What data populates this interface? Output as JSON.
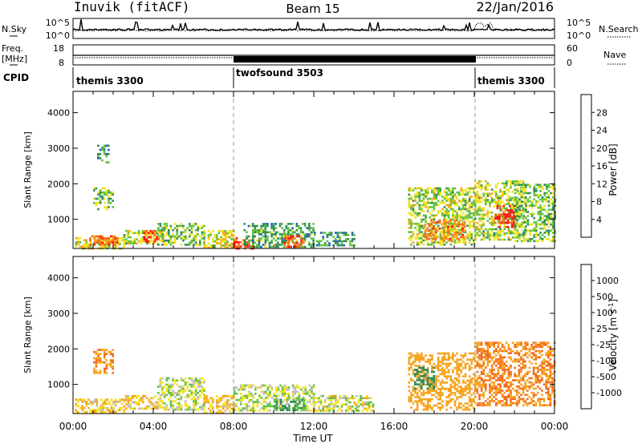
{
  "header": {
    "station": "Inuvik (fitACF)",
    "beam": "Beam 15",
    "date": "22/Jan/2016"
  },
  "noise_panel": {
    "left_label": "N.Sky",
    "left_ticks": [
      "10^5",
      "10^0"
    ],
    "right_label": "N.Search",
    "right_ticks": [
      "10^5",
      "10^0"
    ]
  },
  "freq_panel": {
    "left_label_1": "Freq.",
    "left_label_2": "[MHz]",
    "left_ticks": [
      "18",
      "8"
    ],
    "right_label": "Nave",
    "right_ticks": [
      "60",
      "0"
    ]
  },
  "cpid": {
    "label": "CPID",
    "segments": [
      {
        "name": "themis 3300",
        "start": 0,
        "end": 8
      },
      {
        "name": "twofsound 3503",
        "start": 8,
        "end": 20
      },
      {
        "name": "themis 3300",
        "start": 20,
        "end": 24
      }
    ]
  },
  "colorbars": {
    "power": {
      "title": "Power [dB]",
      "ticks": [
        "4",
        "8",
        "12",
        "16",
        "20",
        "24",
        "28"
      ],
      "colors": [
        "#1010ff",
        "#1e5ac8",
        "#2e8b57",
        "#5fc23a",
        "#f2e21a",
        "#f7a21a",
        "#f26a1a",
        "#ff1010"
      ]
    },
    "velocity": {
      "title": "Velocity [m s",
      "title_sup": "-1",
      "title_end": "]",
      "ticks": [
        "-1000",
        "-500",
        "-100",
        "-25",
        "25",
        "100",
        "500",
        "1000"
      ],
      "colors": [
        "#ff1010",
        "#f26a1a",
        "#f7a21a",
        "#f2e21a",
        "#bdbdbd",
        "#5fc23a",
        "#2e8b57",
        "#1e5ac8",
        "#1010ff"
      ]
    }
  },
  "chart_data": [
    {
      "type": "heatmap",
      "name": "Power",
      "xlabel": "",
      "ylabel": "Slant Range [km]",
      "xlim": [
        0,
        24
      ],
      "ylim": [
        180,
        4600
      ],
      "yticks": [
        1000,
        2000,
        3000,
        4000
      ],
      "grid": "dashed verticals at 08:00 and 20:00",
      "clim": [
        0,
        32
      ],
      "regions": [
        {
          "t0": 0.1,
          "t1": 2.5,
          "r0": 200,
          "r1": 500,
          "level": 18
        },
        {
          "t0": 0.8,
          "t1": 2.2,
          "r0": 300,
          "r1": 550,
          "level": 26
        },
        {
          "t0": 1.0,
          "t1": 2.0,
          "r0": 1300,
          "r1": 1900,
          "level": 14
        },
        {
          "t0": 1.2,
          "t1": 1.8,
          "r0": 2600,
          "r1": 3100,
          "level": 10
        },
        {
          "t0": 2.5,
          "t1": 4.2,
          "r0": 300,
          "r1": 700,
          "level": 16
        },
        {
          "t0": 3.5,
          "t1": 4.5,
          "r0": 350,
          "r1": 700,
          "level": 26
        },
        {
          "t0": 4.2,
          "t1": 6.5,
          "r0": 300,
          "r1": 900,
          "level": 14
        },
        {
          "t0": 6.5,
          "t1": 8.0,
          "r0": 200,
          "r1": 700,
          "level": 18
        },
        {
          "t0": 8.0,
          "t1": 9.0,
          "r0": 200,
          "r1": 500,
          "level": 28
        },
        {
          "t0": 8.5,
          "t1": 12.0,
          "r0": 250,
          "r1": 900,
          "level": 12
        },
        {
          "t0": 10.5,
          "t1": 11.5,
          "r0": 250,
          "r1": 550,
          "level": 28
        },
        {
          "t0": 12.0,
          "t1": 14.0,
          "r0": 250,
          "r1": 650,
          "level": 10
        },
        {
          "t0": 16.7,
          "t1": 20.0,
          "r0": 300,
          "r1": 1900,
          "level": 16
        },
        {
          "t0": 17.5,
          "t1": 19.5,
          "r0": 400,
          "r1": 1000,
          "level": 24
        },
        {
          "t0": 20.0,
          "t1": 22.5,
          "r0": 400,
          "r1": 2100,
          "level": 16
        },
        {
          "t0": 21.0,
          "t1": 22.0,
          "r0": 800,
          "r1": 1400,
          "level": 29
        },
        {
          "t0": 22.0,
          "t1": 24.0,
          "r0": 400,
          "r1": 2000,
          "level": 14
        }
      ]
    },
    {
      "type": "heatmap",
      "name": "Velocity",
      "xlabel": "Time UT",
      "ylabel": "Slant Range [km]",
      "xlim": [
        0,
        24
      ],
      "ylim": [
        180,
        4600
      ],
      "yticks": [
        1000,
        2000,
        3000,
        4000
      ],
      "xticks": [
        "00:00",
        "04:00",
        "08:00",
        "12:00",
        "16:00",
        "20:00",
        "00:00"
      ],
      "grid": "dashed verticals at 08:00 and 20:00",
      "clim": [
        -1000,
        1000
      ],
      "regions": [
        {
          "t0": 0.1,
          "t1": 2.5,
          "r0": 200,
          "r1": 600,
          "level": -100
        },
        {
          "t0": 1.0,
          "t1": 2.0,
          "r0": 1300,
          "r1": 2000,
          "level": -500
        },
        {
          "t0": 2.5,
          "t1": 4.2,
          "r0": 300,
          "r1": 700,
          "level": -100
        },
        {
          "t0": 4.2,
          "t1": 6.5,
          "r0": 300,
          "r1": 1200,
          "level": 0
        },
        {
          "t0": 6.5,
          "t1": 8.0,
          "r0": 200,
          "r1": 700,
          "level": -100
        },
        {
          "t0": 8.0,
          "t1": 12.0,
          "r0": 250,
          "r1": 1000,
          "level": 0
        },
        {
          "t0": 10.0,
          "t1": 11.5,
          "r0": 300,
          "r1": 600,
          "level": 100
        },
        {
          "t0": 12.0,
          "t1": 15.0,
          "r0": 250,
          "r1": 700,
          "level": -25
        },
        {
          "t0": 16.7,
          "t1": 20.0,
          "r0": 300,
          "r1": 1900,
          "level": -300
        },
        {
          "t0": 17.0,
          "t1": 18.0,
          "r0": 900,
          "r1": 1500,
          "level": 300
        },
        {
          "t0": 20.0,
          "t1": 24.0,
          "r0": 400,
          "r1": 2200,
          "level": -500
        }
      ]
    }
  ]
}
